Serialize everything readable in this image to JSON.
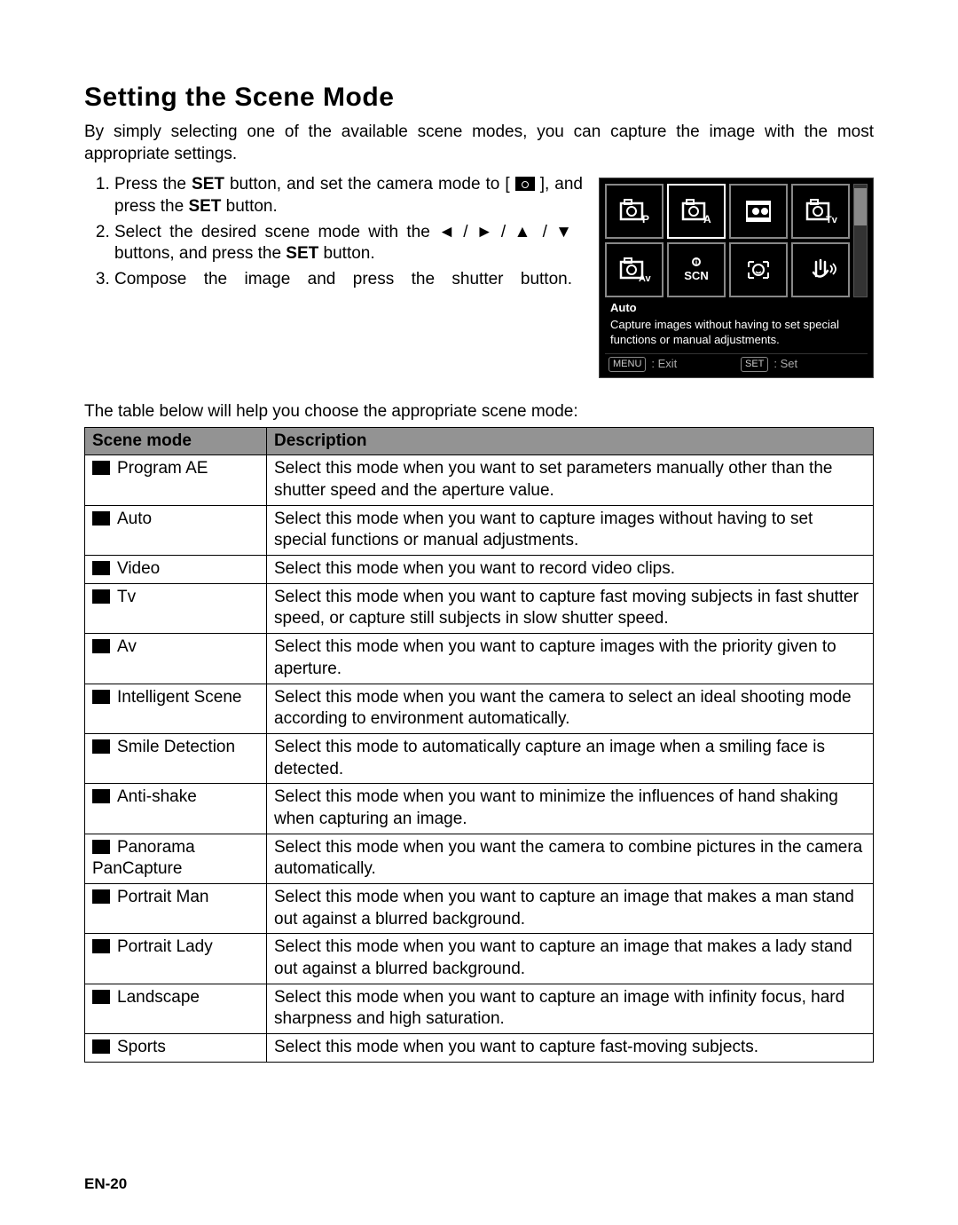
{
  "page": {
    "title": "Setting the Scene Mode",
    "intro": "By simply selecting one of the available scene modes, you can capture the image with the most appropriate settings.",
    "steps": [
      {
        "pre": "Press the ",
        "b1": "SET",
        "mid": " button, and set the camera mode to [ ",
        "post": " ], and press the ",
        "b2": "SET",
        "end": " button."
      },
      {
        "text_pre": "Select the desired scene mode with the ◄ / ► / ▲ / ▼ buttons, and press the ",
        "b": "SET",
        "text_post": " button."
      },
      {
        "text": "Compose the image and press the shutter button."
      }
    ],
    "lcd": {
      "labels": [
        "P",
        "A",
        "",
        "Tv",
        "Av",
        "SCN",
        "",
        ""
      ],
      "caption_title": "Auto",
      "caption_desc": "Capture images without having to set special functions or manual adjustments.",
      "footer_menu_btn": "MENU",
      "footer_menu_lbl": ": Exit",
      "footer_set_btn": "SET",
      "footer_set_lbl": ": Set"
    },
    "table_intro": "The table below will help you choose the appropriate scene mode:",
    "columns": [
      "Scene mode",
      "Description"
    ],
    "rows": [
      {
        "mode": "Program AE",
        "desc": "Select this mode when you want to set parameters manually other than the shutter speed and the aperture value."
      },
      {
        "mode": "Auto",
        "desc": "Select this mode when you want to capture images without having to set special functions or manual adjustments."
      },
      {
        "mode": "Video",
        "desc": "Select this mode when you want to record video clips."
      },
      {
        "mode": "Tv",
        "desc": "Select this mode when you want to capture fast moving subjects in fast shutter speed, or capture still subjects in slow shutter speed."
      },
      {
        "mode": "Av",
        "desc": "Select this mode when you want to capture images with the priority given to aperture."
      },
      {
        "mode": "Intelligent Scene",
        "desc": "Select this mode when you want the camera to select an ideal shooting mode according to environment automatically."
      },
      {
        "mode": "Smile Detection",
        "desc": "Select this mode to automatically capture an image when a smiling face is detected."
      },
      {
        "mode": "Anti-shake",
        "desc": "Select this mode when you want to minimize the influences of hand shaking when capturing an image."
      },
      {
        "mode": "Panorama PanCapture",
        "desc": "Select this mode when you want the camera to combine pictures in the camera automatically."
      },
      {
        "mode": "Portrait Man",
        "desc": "Select this mode when you want to capture an image that makes a man stand out against a blurred background."
      },
      {
        "mode": "Portrait Lady",
        "desc": "Select this mode when you want to capture an image that makes a lady stand out against a blurred background."
      },
      {
        "mode": "Landscape",
        "desc": "Select this mode when you want to capture an image with infinity focus, hard sharpness and high saturation."
      },
      {
        "mode": "Sports",
        "desc": "Select this mode when you want to capture fast-moving subjects."
      }
    ],
    "page_number": "EN-20"
  },
  "style": {
    "body_bg": "#ffffff",
    "text_color": "#000000",
    "th_bg": "#939393",
    "border_color": "#000000",
    "lcd_bg": "#000000",
    "lcd_cell_border": "#888888",
    "lcd_selected_border": "#ffffff",
    "lcd_footer_text": "#aaaaaa",
    "font_size_body": 19,
    "font_size_title": 30,
    "font_size_lcd_caption": 13,
    "font_size_page_num": 17
  }
}
